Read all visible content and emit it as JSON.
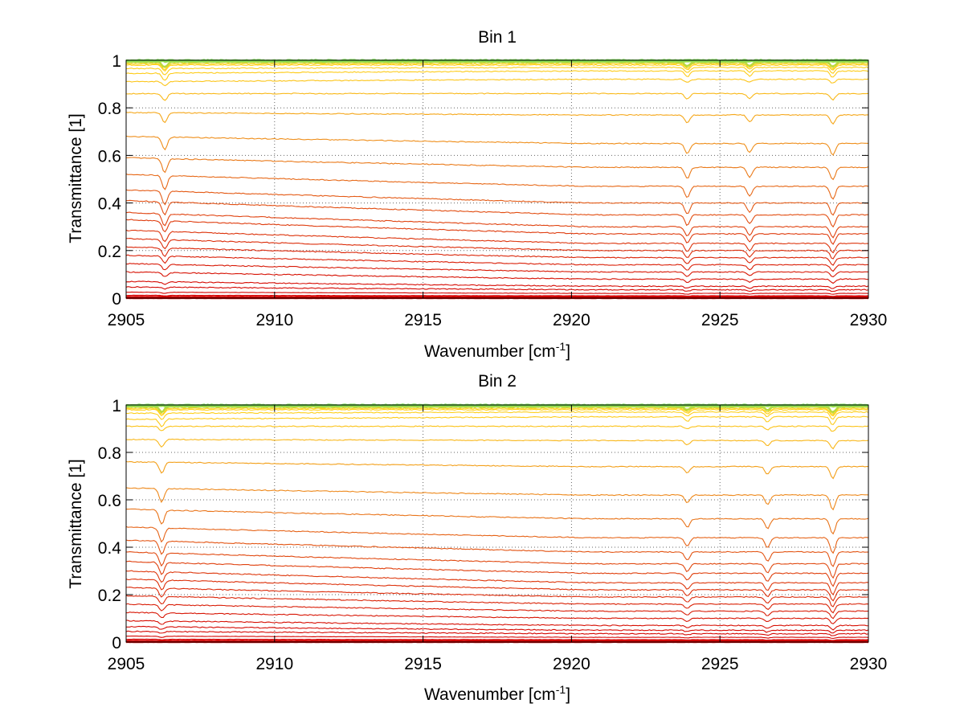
{
  "figure": {
    "background": "#ffffff"
  },
  "chart_data": [
    {
      "type": "line",
      "title": "Bin 1",
      "xlabel": "Wavenumber [cm",
      "xlabel_sup": "-1",
      "xlabel_end": "]",
      "ylabel": "Transmittance [1]",
      "xlim": [
        2905,
        2930
      ],
      "ylim": [
        0,
        1
      ],
      "x_ticks": [
        "2905",
        "2910",
        "2915",
        "2920",
        "2925",
        "2930"
      ],
      "y_ticks": [
        "0",
        "0.2",
        "0.4",
        "0.6",
        "0.8",
        "1"
      ],
      "grid": true,
      "absorption_lines": [
        {
          "x": 2906.3,
          "relative_depth": 1.0
        },
        {
          "x": 2923.9,
          "relative_depth": 0.8
        },
        {
          "x": 2926.0,
          "relative_depth": 0.7
        },
        {
          "x": 2928.8,
          "relative_depth": 0.9
        }
      ],
      "series_levels": [
        0.0,
        0.005,
        0.01,
        0.02,
        0.035,
        0.05,
        0.08,
        0.11,
        0.14,
        0.17,
        0.2,
        0.23,
        0.27,
        0.3,
        0.35,
        0.4,
        0.47,
        0.55,
        0.65,
        0.77,
        0.86,
        0.92,
        0.955,
        0.97,
        0.98,
        0.985,
        0.99,
        0.993,
        0.996,
        0.998,
        1.0
      ],
      "series_slope_at_start": [
        0.0,
        0.0,
        0.002,
        0.005,
        0.012,
        0.02,
        0.03,
        0.035,
        0.04,
        0.045,
        0.05,
        0.055,
        0.06,
        0.06,
        0.06,
        0.055,
        0.05,
        0.04,
        0.03,
        0.01,
        0.0,
        -0.01,
        -0.01,
        -0.005,
        0.0,
        0.0,
        0.0,
        0.0,
        0.0,
        0.0,
        0.0
      ]
    },
    {
      "type": "line",
      "title": "Bin 2",
      "xlabel": "Wavenumber [cm",
      "xlabel_sup": "-1",
      "xlabel_end": "]",
      "ylabel": "Transmittance [1]",
      "xlim": [
        2905,
        2930
      ],
      "ylim": [
        0,
        1
      ],
      "x_ticks": [
        "2905",
        "2910",
        "2915",
        "2920",
        "2925",
        "2930"
      ],
      "y_ticks": [
        "0",
        "0.2",
        "0.4",
        "0.6",
        "0.8",
        "1"
      ],
      "grid": true,
      "absorption_lines": [
        {
          "x": 2906.2,
          "relative_depth": 1.0
        },
        {
          "x": 2923.9,
          "relative_depth": 0.6
        },
        {
          "x": 2926.6,
          "relative_depth": 0.7
        },
        {
          "x": 2928.8,
          "relative_depth": 1.1
        }
      ],
      "series_levels": [
        0.0,
        0.005,
        0.01,
        0.02,
        0.035,
        0.05,
        0.07,
        0.1,
        0.13,
        0.16,
        0.19,
        0.22,
        0.25,
        0.29,
        0.33,
        0.38,
        0.44,
        0.52,
        0.62,
        0.74,
        0.85,
        0.91,
        0.95,
        0.97,
        0.98,
        0.985,
        0.99,
        0.993,
        0.996,
        0.998,
        1.0
      ],
      "series_slope_at_start": [
        0.0,
        0.0,
        0.002,
        0.005,
        0.01,
        0.015,
        0.02,
        0.025,
        0.03,
        0.035,
        0.04,
        0.045,
        0.05,
        0.05,
        0.05,
        0.05,
        0.045,
        0.04,
        0.03,
        0.02,
        0.005,
        0.0,
        -0.01,
        -0.005,
        0.0,
        0.0,
        0.0,
        0.0,
        0.0,
        0.0,
        0.0
      ]
    }
  ],
  "colors": {
    "low": "#d40000",
    "mid": "#e8701a",
    "high": "#ffd21a",
    "top": "#7fe05a",
    "grid": "#666666",
    "axis": "#000000"
  }
}
